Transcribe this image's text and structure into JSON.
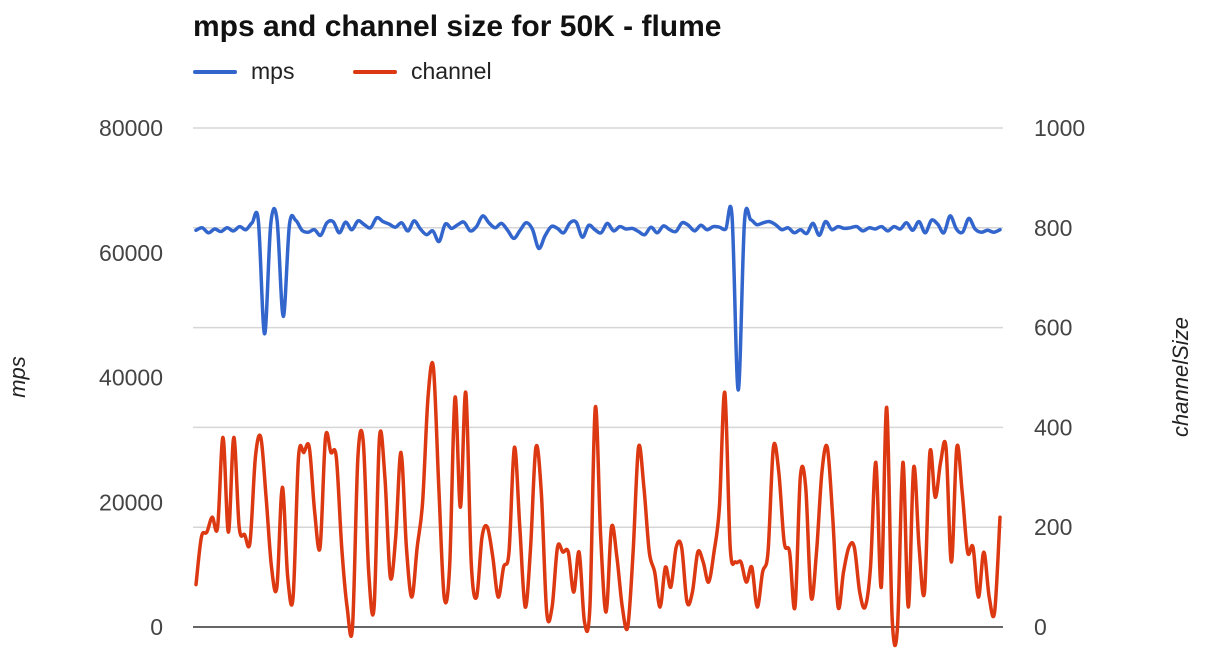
{
  "chart_data": {
    "type": "line",
    "title": "mps and channel size for 50K - flume",
    "xlabel": "",
    "ylabel": "mps",
    "ylabel_right": "channelSize",
    "ylim": [
      0,
      80000
    ],
    "ylim_right": [
      0,
      1000
    ],
    "yticks": [
      "0",
      "20000",
      "40000",
      "60000",
      "80000"
    ],
    "yticks_right": [
      "0",
      "200",
      "400",
      "600",
      "800",
      "1000"
    ],
    "grid": true,
    "legend_position": "top-left",
    "series": [
      {
        "name": "mps",
        "axis": "left",
        "color": "#3366cc",
        "values": [
          63600,
          64000,
          63200,
          63800,
          63400,
          64000,
          63500,
          64200,
          63700,
          64800,
          65200,
          47000,
          64700,
          65300,
          49800,
          64600,
          65200,
          63600,
          63300,
          63700,
          62800,
          64800,
          65000,
          63200,
          64900,
          63700,
          65100,
          64500,
          64000,
          65600,
          65000,
          64600,
          64100,
          64800,
          63500,
          65100,
          63800,
          62900,
          63500,
          61800,
          64600,
          63900,
          64500,
          64900,
          63500,
          64200,
          65900,
          64800,
          64000,
          64700,
          63600,
          62300,
          63600,
          64800,
          63700,
          60700,
          62700,
          64200,
          63900,
          63200,
          64800,
          64900,
          62500,
          64400,
          63700,
          63200,
          64700,
          63500,
          64200,
          63800,
          63900,
          63400,
          62900,
          64100,
          63200,
          64300,
          63700,
          63400,
          64800,
          64400,
          63500,
          64400,
          63700,
          64200,
          64100,
          63800,
          65900,
          38000,
          65000,
          65300,
          64500,
          64800,
          65000,
          64500,
          63700,
          64000,
          63200,
          63700,
          63100,
          64700,
          62800,
          65000,
          63700,
          64200,
          63900,
          64000,
          64200,
          63500,
          64000,
          63800,
          64200,
          63500,
          64200,
          63800,
          64800,
          63600,
          65000,
          63200,
          65200,
          64600,
          63200,
          65900,
          63800,
          63300,
          65500,
          63800,
          63300,
          63600,
          63300,
          63700
        ]
      },
      {
        "name": "channel",
        "axis": "right",
        "color": "#dc3912",
        "values": [
          85,
          180,
          190,
          220,
          200,
          380,
          190,
          380,
          200,
          185,
          170,
          340,
          380,
          260,
          120,
          80,
          280,
          100,
          60,
          340,
          350,
          360,
          230,
          160,
          380,
          350,
          340,
          160,
          40,
          0,
          340,
          370,
          110,
          40,
          380,
          300,
          100,
          180,
          350,
          160,
          60,
          160,
          250,
          460,
          520,
          280,
          60,
          120,
          460,
          240,
          470,
          130,
          60,
          180,
          200,
          140,
          60,
          120,
          150,
          360,
          200,
          40,
          160,
          360,
          270,
          30,
          40,
          160,
          150,
          150,
          70,
          150,
          10,
          40,
          440,
          180,
          30,
          200,
          140,
          40,
          0,
          150,
          360,
          280,
          150,
          110,
          40,
          120,
          80,
          160,
          160,
          50,
          70,
          150,
          130,
          90,
          150,
          240,
          470,
          160,
          130,
          130,
          90,
          120,
          40,
          110,
          150,
          360,
          310,
          170,
          150,
          40,
          300,
          280,
          60,
          150,
          310,
          360,
          220,
          40,
          110,
          160,
          160,
          70,
          40,
          120,
          330,
          80,
          440,
          20,
          0,
          330,
          40,
          320,
          160,
          70,
          350,
          260,
          330,
          360,
          130,
          360,
          270,
          150,
          160,
          60,
          150,
          60,
          30,
          220
        ]
      }
    ]
  }
}
